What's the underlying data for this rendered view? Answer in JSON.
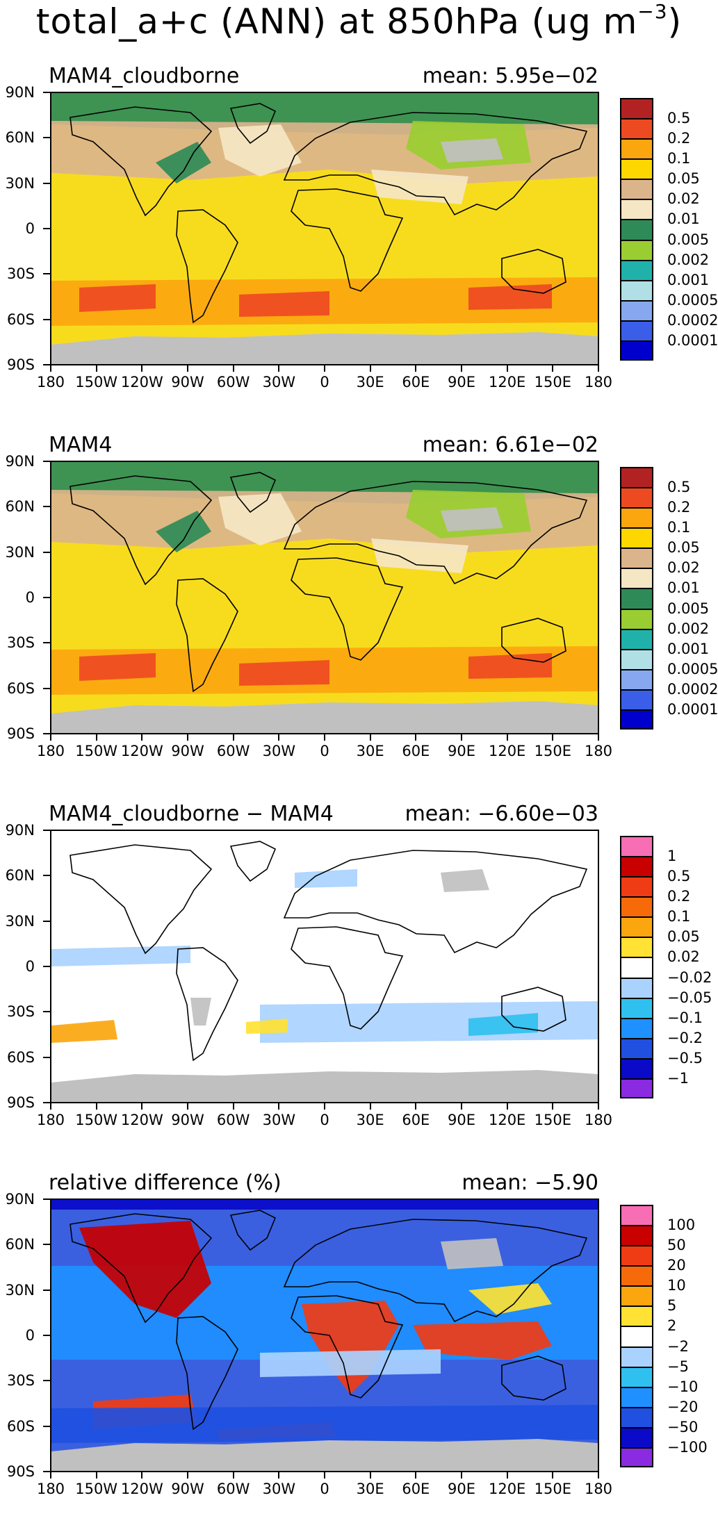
{
  "title": {
    "text": "total_a+c (ANN) at 850hPa (ug m",
    "exponent": "−3",
    "close": ")"
  },
  "axes": {
    "y_labels": [
      "90N",
      "60N",
      "30N",
      "0",
      "30S",
      "60S",
      "90S"
    ],
    "x_labels": [
      "180",
      "150W",
      "120W",
      "90W",
      "60W",
      "30W",
      "0",
      "30E",
      "60E",
      "90E",
      "120E",
      "150E",
      "180"
    ]
  },
  "panels": [
    {
      "title": "MAM4_cloudborne",
      "mean": "mean: 5.95e−02",
      "palette": "abs",
      "background": "#f7dc1e",
      "legend": {
        "colors": [
          "#b22222",
          "#ee4a22",
          "#fba60f",
          "#ffd700",
          "#dbb48c",
          "#f5e6c4",
          "#2e8b57",
          "#9acd32",
          "#20b2aa",
          "#b0e0e6",
          "#87a8f0",
          "#3b5ee8",
          "#0000cd"
        ],
        "labels": [
          "0.5",
          "0.2",
          "0.1",
          "0.05",
          "0.02",
          "0.01",
          "0.005",
          "0.002",
          "0.001",
          "0.0005",
          "0.0002",
          "0.0001"
        ]
      }
    },
    {
      "title": "MAM4",
      "mean": "mean: 6.61e−02",
      "palette": "abs",
      "background": "#f7dc1e",
      "legend": {
        "colors": [
          "#b22222",
          "#ee4a22",
          "#fba60f",
          "#ffd700",
          "#dbb48c",
          "#f5e6c4",
          "#2e8b57",
          "#9acd32",
          "#20b2aa",
          "#b0e0e6",
          "#87a8f0",
          "#3b5ee8",
          "#0000cd"
        ],
        "labels": [
          "0.5",
          "0.2",
          "0.1",
          "0.05",
          "0.02",
          "0.01",
          "0.005",
          "0.002",
          "0.001",
          "0.0005",
          "0.0002",
          "0.0001"
        ]
      }
    },
    {
      "title": "MAM4_cloudborne − MAM4",
      "mean": "mean: −6.60e−03",
      "palette": "diff",
      "background": "#ffffff",
      "legend": {
        "colors": [
          "#f76eb4",
          "#c80000",
          "#f03c14",
          "#f76a0a",
          "#fba60f",
          "#ffe233",
          "#ffffff",
          "#aad2ff",
          "#30c0f0",
          "#1e90ff",
          "#2050e0",
          "#0a0ac8",
          "#8a2be2"
        ],
        "labels": [
          "1",
          "0.5",
          "0.2",
          "0.1",
          "0.05",
          "0.02",
          "−0.02",
          "−0.05",
          "−0.1",
          "−0.2",
          "−0.5",
          "−1"
        ]
      }
    },
    {
      "title": "relative difference (%)",
      "mean": "mean: −5.90",
      "palette": "rel",
      "background": "#3a60e0",
      "legend": {
        "colors": [
          "#f76eb4",
          "#c80000",
          "#f03c14",
          "#f76a0a",
          "#fba60f",
          "#ffe233",
          "#ffffff",
          "#aad2ff",
          "#30c0f0",
          "#1e90ff",
          "#2050e0",
          "#0a0ac8",
          "#8a2be2"
        ],
        "labels": [
          "100",
          "50",
          "20",
          "10",
          "5",
          "2",
          "−2",
          "−5",
          "−10",
          "−20",
          "−50",
          "−100"
        ]
      }
    }
  ]
}
